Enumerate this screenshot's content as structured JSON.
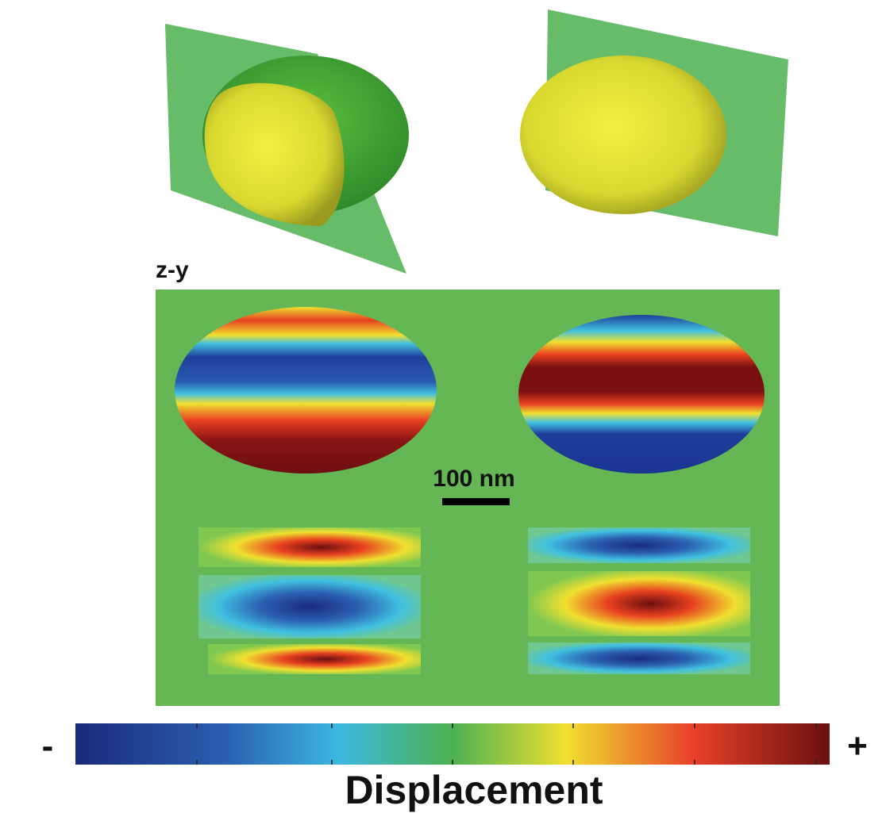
{
  "panel_label": "z-y",
  "scale_bar": "100 nm",
  "colorbar": {
    "min_label": "-",
    "max_label": "+",
    "title": "Displacement"
  }
}
